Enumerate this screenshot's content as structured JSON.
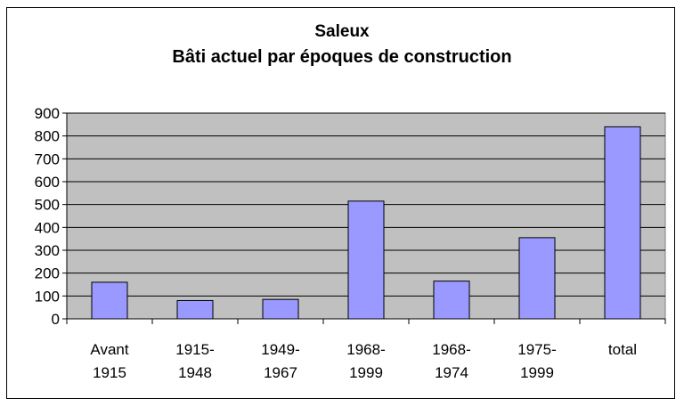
{
  "chart_data": {
    "type": "bar",
    "title": "Saleux",
    "subtitle": "Bâti actuel par époques de construction",
    "categories": [
      [
        "Avant",
        "1915"
      ],
      [
        "1915-",
        "1948"
      ],
      [
        "1949-",
        "1967"
      ],
      [
        "1968-",
        "1999"
      ],
      [
        "1968-",
        "1974"
      ],
      [
        "1975-",
        "1999"
      ],
      [
        "total"
      ]
    ],
    "values": [
      160,
      80,
      85,
      515,
      165,
      355,
      840
    ],
    "ylim": [
      0,
      900
    ],
    "yticks": [
      "0",
      "100",
      "200",
      "300",
      "400",
      "500",
      "600",
      "700",
      "800",
      "900"
    ],
    "grid": true,
    "colors": {
      "bar": "#9999ff",
      "plot_bg": "#c0c0c0",
      "grid": "#000000"
    }
  }
}
